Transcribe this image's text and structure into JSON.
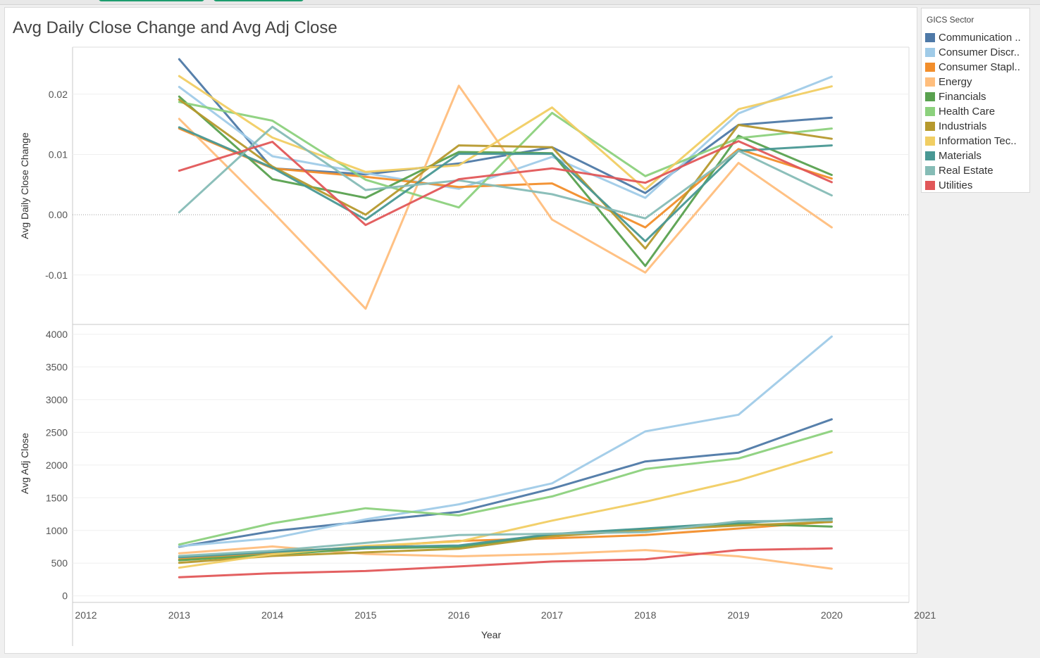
{
  "title": "Avg Daily Close Change and Avg Adj Close",
  "legend": {
    "title": "GICS Sector",
    "items": [
      {
        "label": "Communication ..",
        "color": "#4e79a7"
      },
      {
        "label": "Consumer Discr..",
        "color": "#a0cbe8"
      },
      {
        "label": "Consumer Stapl..",
        "color": "#f28e2b"
      },
      {
        "label": "Energy",
        "color": "#ffbe7d"
      },
      {
        "label": "Financials",
        "color": "#59a14f"
      },
      {
        "label": "Health Care",
        "color": "#8cd17d"
      },
      {
        "label": "Industrials",
        "color": "#b6992d"
      },
      {
        "label": "Information Tec..",
        "color": "#f1ce63"
      },
      {
        "label": "Materials",
        "color": "#499894"
      },
      {
        "label": "Real Estate",
        "color": "#86bcb6"
      },
      {
        "label": "Utilities",
        "color": "#e15759"
      }
    ]
  },
  "chart_data": [
    {
      "type": "line",
      "ylabel": "Avg Daily Close Change",
      "xlabel": "Year",
      "x": [
        2013,
        2014,
        2015,
        2016,
        2017,
        2018,
        2019,
        2020
      ],
      "xlim": [
        2012,
        2021
      ],
      "xticks": [
        "2012",
        "2013",
        "2014",
        "2015",
        "2016",
        "2017",
        "2018",
        "2019",
        "2020",
        "2021"
      ],
      "ylim": [
        -0.0182,
        0.0278
      ],
      "yticks": [
        {
          "v": 0.02,
          "label": "0.02"
        },
        {
          "v": 0.01,
          "label": "0.01"
        },
        {
          "v": 0.0,
          "label": "0.00"
        },
        {
          "v": -0.01,
          "label": "-0.01"
        }
      ],
      "zero_line": true,
      "series": [
        {
          "name": "Communication ..",
          "values": [
            0.0258,
            0.0077,
            0.0067,
            0.0085,
            0.0112,
            0.0036,
            0.0149,
            0.0161
          ]
        },
        {
          "name": "Consumer Discr..",
          "values": [
            0.0212,
            0.0097,
            0.0069,
            0.0043,
            0.0096,
            0.0028,
            0.0168,
            0.0229
          ]
        },
        {
          "name": "Consumer Stapl..",
          "values": [
            0.0143,
            0.0077,
            0.0063,
            0.0046,
            0.0052,
            -0.0021,
            0.0109,
            0.006
          ]
        },
        {
          "name": "Energy",
          "values": [
            0.0159,
            0.0005,
            -0.0156,
            0.0214,
            -0.0008,
            -0.0096,
            0.0086,
            -0.0021
          ]
        },
        {
          "name": "Financials",
          "values": [
            0.0196,
            0.0059,
            0.0028,
            0.0104,
            0.0102,
            -0.0085,
            0.0131,
            0.0066
          ]
        },
        {
          "name": "Health Care",
          "values": [
            0.0187,
            0.0156,
            0.0058,
            0.0012,
            0.0169,
            0.0064,
            0.0127,
            0.0143
          ]
        },
        {
          "name": "Industrials",
          "values": [
            0.0191,
            0.008,
            0.0,
            0.0115,
            0.0112,
            -0.0056,
            0.0149,
            0.0126
          ]
        },
        {
          "name": "Information Tec..",
          "values": [
            0.023,
            0.0128,
            0.0071,
            0.0082,
            0.0178,
            0.0042,
            0.0175,
            0.0213
          ]
        },
        {
          "name": "Materials",
          "values": [
            0.0145,
            0.0078,
            -0.0008,
            0.0101,
            0.0101,
            -0.0044,
            0.0106,
            0.0115
          ]
        },
        {
          "name": "Real Estate",
          "values": [
            0.0004,
            0.0146,
            0.0041,
            0.0057,
            0.0034,
            -0.0006,
            0.0106,
            0.0032
          ]
        },
        {
          "name": "Utilities",
          "values": [
            0.0073,
            0.0121,
            -0.0017,
            0.0059,
            0.0077,
            0.0053,
            0.0122,
            0.0054
          ]
        }
      ]
    },
    {
      "type": "line",
      "ylabel": "Avg Adj Close",
      "xlabel": "Year",
      "x": [
        2013,
        2014,
        2015,
        2016,
        2017,
        2018,
        2019,
        2020
      ],
      "xlim": [
        2012,
        2021
      ],
      "ylim": [
        -100,
        4150
      ],
      "yticks": [
        {
          "v": 4000,
          "label": "4000"
        },
        {
          "v": 3500,
          "label": "3500"
        },
        {
          "v": 3000,
          "label": "3000"
        },
        {
          "v": 2500,
          "label": "2500"
        },
        {
          "v": 2000,
          "label": "2000"
        },
        {
          "v": 1500,
          "label": "1500"
        },
        {
          "v": 1000,
          "label": "1000"
        },
        {
          "v": 500,
          "label": "500"
        },
        {
          "v": 0,
          "label": "0"
        }
      ],
      "series": [
        {
          "name": "Communication ..",
          "values": [
            750,
            990,
            1140,
            1285,
            1640,
            2055,
            2190,
            2700
          ]
        },
        {
          "name": "Consumer Discr..",
          "values": [
            760,
            880,
            1170,
            1400,
            1720,
            2515,
            2770,
            3965
          ]
        },
        {
          "name": "Consumer Stapl..",
          "values": [
            560,
            660,
            750,
            840,
            880,
            930,
            1030,
            1135
          ]
        },
        {
          "name": "Energy",
          "values": [
            650,
            755,
            640,
            605,
            640,
            700,
            605,
            415
          ]
        },
        {
          "name": "Financials",
          "values": [
            545,
            630,
            725,
            750,
            935,
            1025,
            1100,
            1060
          ]
        },
        {
          "name": "Health Care",
          "values": [
            785,
            1110,
            1340,
            1230,
            1520,
            1940,
            2100,
            2520
          ]
        },
        {
          "name": "Industrials",
          "values": [
            505,
            610,
            665,
            720,
            910,
            1005,
            1075,
            1130
          ]
        },
        {
          "name": "Information Tec..",
          "values": [
            430,
            635,
            765,
            830,
            1150,
            1440,
            1765,
            2195
          ]
        },
        {
          "name": "Materials",
          "values": [
            590,
            670,
            745,
            770,
            945,
            1030,
            1120,
            1180
          ]
        },
        {
          "name": "Real Estate",
          "values": [
            610,
            690,
            810,
            930,
            950,
            975,
            1140,
            1155
          ]
        },
        {
          "name": "Utilities",
          "values": [
            285,
            345,
            380,
            450,
            525,
            560,
            700,
            725
          ]
        }
      ]
    }
  ]
}
